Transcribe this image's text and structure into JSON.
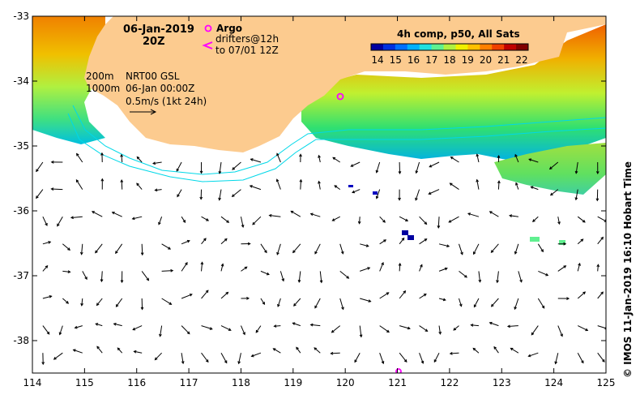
{
  "header": {
    "date": "06-Jan-2019",
    "time": "20Z"
  },
  "legend": {
    "argo_label": "Argo",
    "drifters_label": "drifters@12h",
    "drifters_to": "to 07/01 12Z",
    "isobath_200": "200m",
    "isobath_1000": "1000m",
    "current_source": "NRT00 GSL",
    "current_time": "06-Jan 00:00Z",
    "vector_scale": "0.5m/s (1kt 24h)"
  },
  "colorbar": {
    "title": "4h comp, p50, All Sats",
    "labels": [
      "14",
      "15",
      "16",
      "17",
      "18",
      "19",
      "20",
      "21",
      "22"
    ],
    "colors": [
      "#0000a0",
      "#0030e0",
      "#0070ff",
      "#00b0ff",
      "#20e0e0",
      "#60f090",
      "#b0f040",
      "#f0f000",
      "#ffc000",
      "#ff8000",
      "#f04000",
      "#c00000",
      "#800000"
    ]
  },
  "axes": {
    "x_ticks": [
      "114",
      "115",
      "116",
      "117",
      "118",
      "119",
      "120",
      "121",
      "122",
      "123",
      "124",
      "125"
    ],
    "y_ticks": [
      "-33",
      "-34",
      "-35",
      "-36",
      "-37",
      "-38"
    ],
    "lon_range": [
      114,
      125
    ],
    "lat_range": [
      -38.5,
      -33
    ]
  },
  "credit": "© IMOS 11-Jan-2019 16:10 Hobart Time",
  "colors": {
    "land": "#fccb8f",
    "isobath": "#00d8e8",
    "argo": "#ff00ff",
    "drifter": "#ff00ff"
  }
}
